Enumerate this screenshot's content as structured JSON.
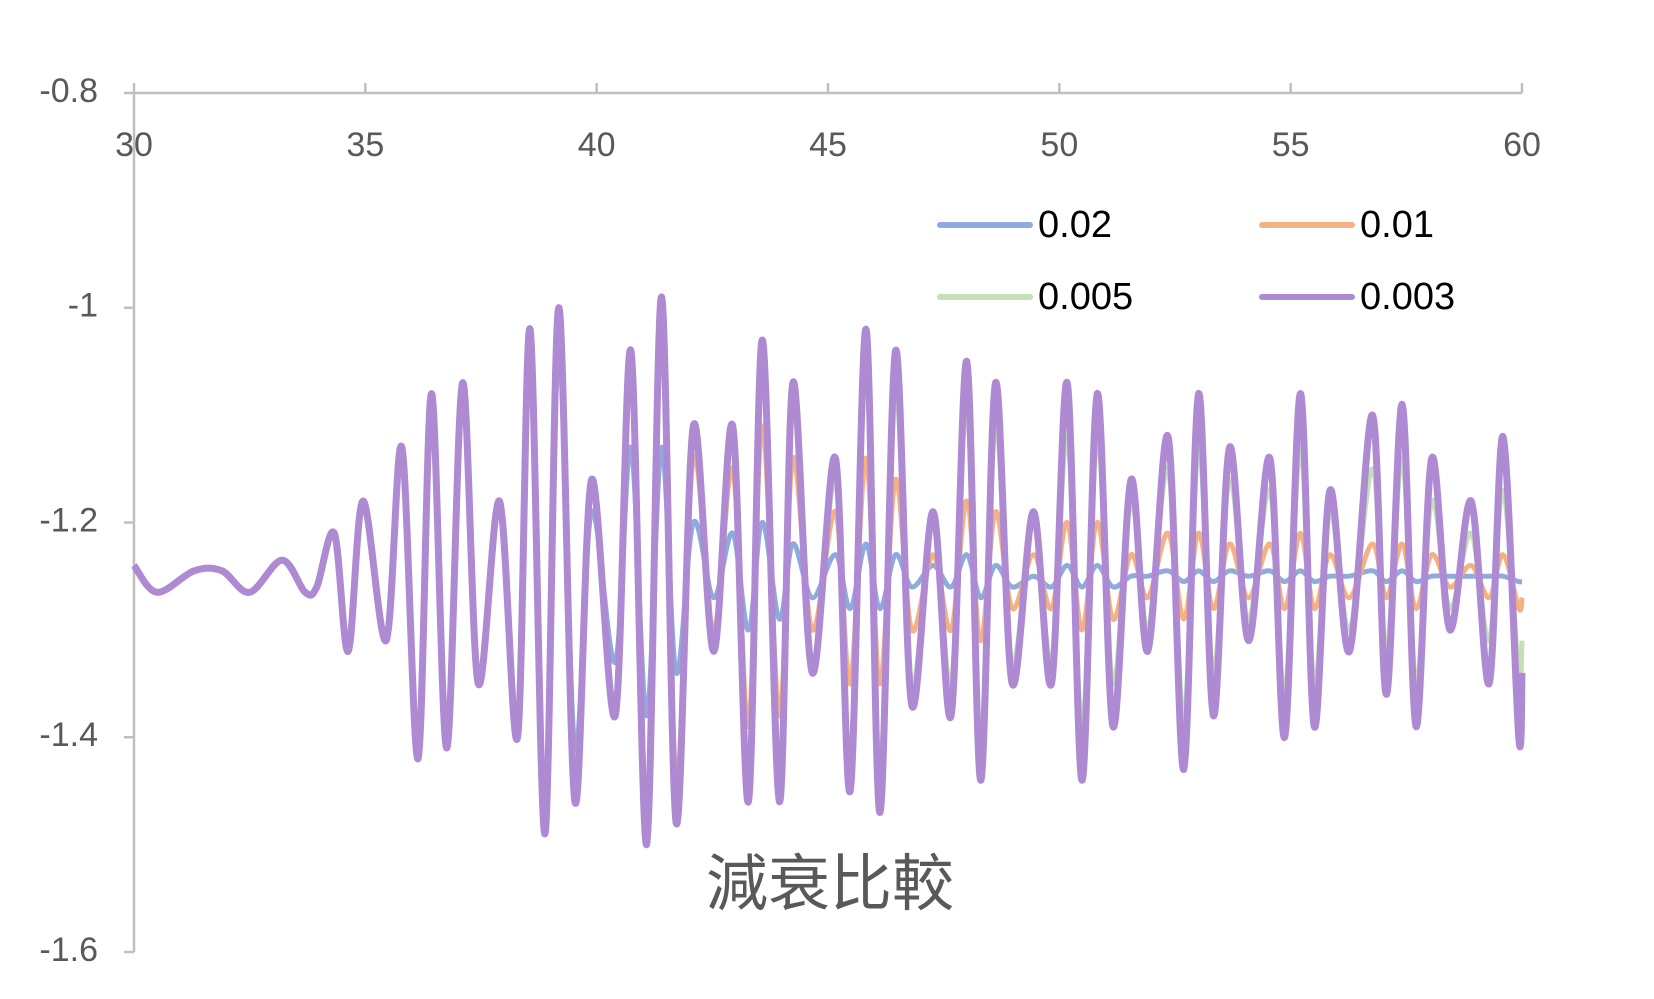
{
  "chart_data": {
    "type": "line",
    "title": "減衰比較",
    "x": [
      30.0,
      30.5,
      31.3,
      31.9,
      32.5,
      33.2,
      33.7,
      33.95,
      34.33,
      34.63,
      34.95,
      35.45,
      35.79,
      36.14,
      36.43,
      36.76,
      37.1,
      37.44,
      37.9,
      38.29,
      38.56,
      38.88,
      39.18,
      39.53,
      39.89,
      40.4,
      40.74,
      41.08,
      41.4,
      41.72,
      42.09,
      42.53,
      42.94,
      43.28,
      43.58,
      43.95,
      44.24,
      44.66,
      45.16,
      45.48,
      45.82,
      46.12,
      46.46,
      46.81,
      47.27,
      47.66,
      48.0,
      48.3,
      48.62,
      48.98,
      49.44,
      49.83,
      50.17,
      50.49,
      50.82,
      51.16,
      51.55,
      51.91,
      52.35,
      52.69,
      53.01,
      53.33,
      53.68,
      54.09,
      54.55,
      54.87,
      55.21,
      55.51,
      55.85,
      56.27,
      56.77,
      57.07,
      57.41,
      57.71,
      58.05,
      58.44,
      58.9,
      59.29,
      59.59,
      59.93,
      60.0
    ],
    "series": [
      {
        "name": "0.02",
        "color": "#8faadc",
        "values": [
          -1.24,
          -1.265,
          -1.245,
          -1.245,
          -1.265,
          -1.235,
          -1.265,
          -1.26,
          -1.21,
          -1.32,
          -1.18,
          -1.31,
          -1.13,
          -1.42,
          -1.08,
          -1.41,
          -1.07,
          -1.35,
          -1.18,
          -1.39,
          -1.04,
          -1.46,
          -1.04,
          -1.41,
          -1.19,
          -1.33,
          -1.13,
          -1.38,
          -1.13,
          -1.34,
          -1.2,
          -1.27,
          -1.21,
          -1.3,
          -1.2,
          -1.29,
          -1.22,
          -1.27,
          -1.23,
          -1.28,
          -1.22,
          -1.28,
          -1.23,
          -1.26,
          -1.24,
          -1.26,
          -1.23,
          -1.27,
          -1.24,
          -1.26,
          -1.25,
          -1.26,
          -1.24,
          -1.26,
          -1.24,
          -1.26,
          -1.25,
          -1.25,
          -1.245,
          -1.255,
          -1.245,
          -1.255,
          -1.245,
          -1.25,
          -1.245,
          -1.255,
          -1.245,
          -1.255,
          -1.25,
          -1.25,
          -1.245,
          -1.255,
          -1.245,
          -1.255,
          -1.25,
          -1.25,
          -1.25,
          -1.25,
          -1.25,
          -1.255,
          -1.255
        ]
      },
      {
        "name": "0.01",
        "color": "#f4b183",
        "values": [
          -1.24,
          -1.265,
          -1.245,
          -1.245,
          -1.265,
          -1.235,
          -1.265,
          -1.26,
          -1.21,
          -1.32,
          -1.18,
          -1.31,
          -1.13,
          -1.42,
          -1.08,
          -1.41,
          -1.07,
          -1.35,
          -1.18,
          -1.4,
          -1.03,
          -1.48,
          -1.01,
          -1.45,
          -1.17,
          -1.37,
          -1.06,
          -1.47,
          -1.03,
          -1.44,
          -1.14,
          -1.3,
          -1.15,
          -1.39,
          -1.11,
          -1.38,
          -1.14,
          -1.3,
          -1.19,
          -1.35,
          -1.14,
          -1.35,
          -1.16,
          -1.3,
          -1.23,
          -1.3,
          -1.18,
          -1.31,
          -1.19,
          -1.28,
          -1.23,
          -1.28,
          -1.2,
          -1.3,
          -1.2,
          -1.29,
          -1.23,
          -1.27,
          -1.21,
          -1.29,
          -1.21,
          -1.28,
          -1.22,
          -1.27,
          -1.22,
          -1.28,
          -1.21,
          -1.28,
          -1.23,
          -1.27,
          -1.22,
          -1.27,
          -1.22,
          -1.28,
          -1.23,
          -1.26,
          -1.24,
          -1.27,
          -1.23,
          -1.28,
          -1.27
        ]
      },
      {
        "name": "0.005",
        "color": "#c5e0b4",
        "values": [
          -1.24,
          -1.265,
          -1.245,
          -1.245,
          -1.265,
          -1.235,
          -1.265,
          -1.26,
          -1.21,
          -1.32,
          -1.18,
          -1.31,
          -1.13,
          -1.42,
          -1.08,
          -1.41,
          -1.07,
          -1.35,
          -1.18,
          -1.4,
          -1.02,
          -1.49,
          -1.0,
          -1.46,
          -1.16,
          -1.38,
          -1.04,
          -1.49,
          -1.0,
          -1.47,
          -1.12,
          -1.32,
          -1.12,
          -1.44,
          -1.05,
          -1.44,
          -1.09,
          -1.33,
          -1.16,
          -1.42,
          -1.06,
          -1.43,
          -1.08,
          -1.35,
          -1.2,
          -1.35,
          -1.09,
          -1.4,
          -1.11,
          -1.33,
          -1.2,
          -1.33,
          -1.12,
          -1.39,
          -1.12,
          -1.35,
          -1.18,
          -1.3,
          -1.15,
          -1.38,
          -1.13,
          -1.34,
          -1.16,
          -1.29,
          -1.17,
          -1.36,
          -1.13,
          -1.35,
          -1.19,
          -1.3,
          -1.15,
          -1.32,
          -1.14,
          -1.35,
          -1.18,
          -1.28,
          -1.21,
          -1.31,
          -1.17,
          -1.34,
          -1.31
        ]
      },
      {
        "name": "0.003",
        "color": "#ad8ad2",
        "values": [
          -1.24,
          -1.265,
          -1.245,
          -1.245,
          -1.265,
          -1.235,
          -1.265,
          -1.26,
          -1.21,
          -1.32,
          -1.18,
          -1.31,
          -1.13,
          -1.42,
          -1.08,
          -1.41,
          -1.07,
          -1.35,
          -1.18,
          -1.4,
          -1.02,
          -1.49,
          -1.0,
          -1.46,
          -1.16,
          -1.38,
          -1.04,
          -1.5,
          -0.99,
          -1.48,
          -1.11,
          -1.32,
          -1.11,
          -1.46,
          -1.03,
          -1.46,
          -1.07,
          -1.34,
          -1.14,
          -1.45,
          -1.02,
          -1.47,
          -1.04,
          -1.37,
          -1.19,
          -1.38,
          -1.05,
          -1.44,
          -1.07,
          -1.35,
          -1.19,
          -1.35,
          -1.07,
          -1.44,
          -1.08,
          -1.39,
          -1.16,
          -1.32,
          -1.12,
          -1.43,
          -1.08,
          -1.38,
          -1.13,
          -1.31,
          -1.14,
          -1.4,
          -1.08,
          -1.39,
          -1.17,
          -1.32,
          -1.1,
          -1.36,
          -1.09,
          -1.39,
          -1.14,
          -1.3,
          -1.18,
          -1.35,
          -1.12,
          -1.4,
          -1.34
        ]
      }
    ],
    "xlim": [
      30,
      60
    ],
    "xticks": [
      30,
      35,
      40,
      45,
      50,
      55,
      60
    ],
    "ylim": [
      -1.6,
      -0.8
    ],
    "yticks": [
      -0.8,
      -1,
      -1.2,
      -1.4,
      -1.6
    ],
    "legend": "top-right",
    "grid": false
  }
}
